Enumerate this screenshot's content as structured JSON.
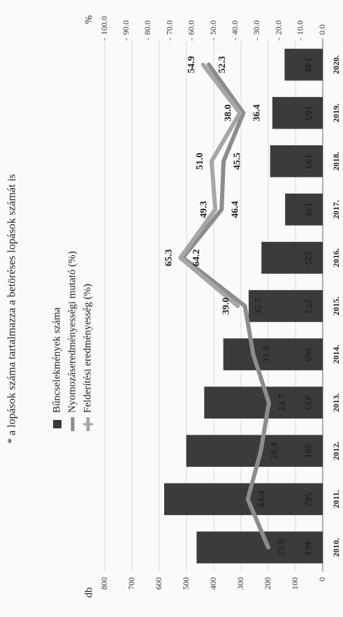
{
  "chart_data": {
    "type": "bar-line",
    "title": "* a lopások száma tartalmazza a betöréses lopások számát is",
    "ylabel": "db",
    "y2label": "%",
    "categories": [
      "2010.",
      "2011.",
      "2012.",
      "2013.",
      "2014.",
      "2015.",
      "2016.",
      "2017.",
      "2018.",
      "2019.",
      "2020."
    ],
    "series": [
      {
        "name": "Bűncselekmények száma",
        "type": "bar",
        "color": "#3b3b3b",
        "values": [
          463,
          582,
          501,
          435,
          365,
          272,
          225,
          138,
          193,
          185,
          140
        ]
      },
      {
        "name": "Nyomozáseredményességi mutató (%)",
        "type": "line",
        "axis": "y2",
        "color": "#8c8c8c",
        "values": [
          25.0,
          34.4,
          28.4,
          24.7,
          31.9,
          35.7,
          64.2,
          46.4,
          45.5,
          36.4,
          52.3
        ],
        "value_labels": [
          "25.0",
          "34.4",
          "28.4",
          "24.7",
          "31.9",
          "35.7",
          "64.2",
          "46.4",
          "45.5",
          "36.4",
          "52.3"
        ]
      },
      {
        "name": "Felderítési eredményesség (%)",
        "type": "line",
        "axis": "y2",
        "color": "#a6a6a6",
        "values": [
          null,
          null,
          null,
          null,
          null,
          39.0,
          65.3,
          49.3,
          51.0,
          38.0,
          54.9
        ],
        "value_labels": [
          null,
          null,
          null,
          null,
          null,
          "39.0",
          "65.3",
          "49.3",
          "51.0",
          "38.0",
          "54.9"
        ]
      }
    ],
    "ylim": [
      0,
      800
    ],
    "yticks": [
      0,
      100,
      200,
      300,
      400,
      500,
      600,
      700,
      800
    ],
    "y2lim": [
      0,
      100
    ],
    "y2ticks": [
      {
        "value": 0,
        "label": "0.0"
      },
      {
        "value": 10,
        "label": "10.0"
      },
      {
        "value": 20,
        "label": "20.0"
      },
      {
        "value": 30,
        "label": "30.0"
      },
      {
        "value": 40,
        "label": "40.0"
      },
      {
        "value": 50,
        "label": "50.0"
      },
      {
        "value": 60,
        "label": "60.0"
      },
      {
        "value": 70,
        "label": "70.0"
      },
      {
        "value": 80,
        "label": "80.0"
      },
      {
        "value": 90,
        "label": "90.0"
      },
      {
        "value": 100,
        "label": "100.0"
      }
    ],
    "grid": true
  }
}
